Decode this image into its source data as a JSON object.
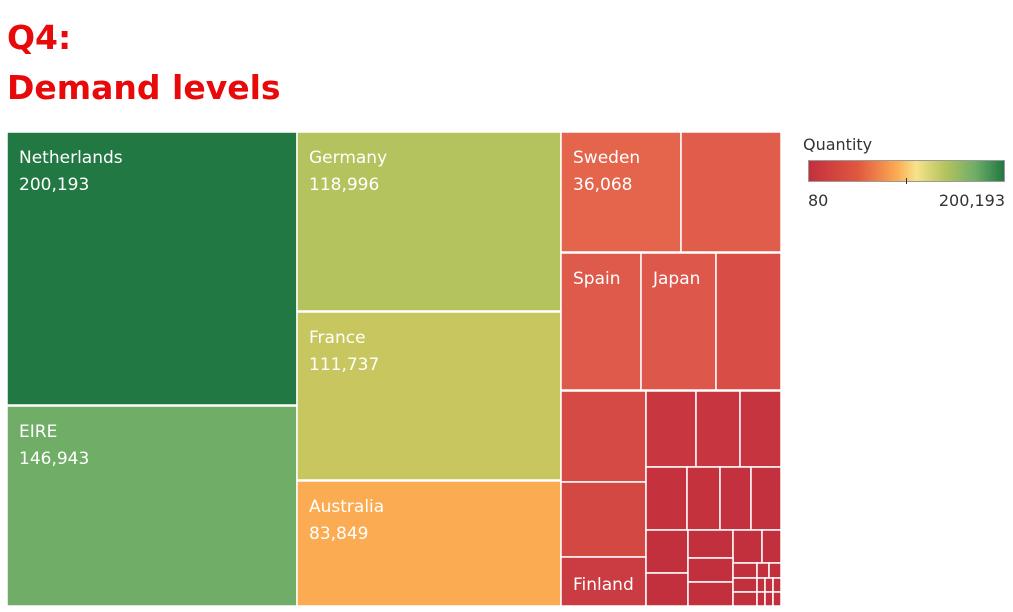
{
  "title": "Q4:",
  "subtitle": "Demand levels",
  "colors": {
    "title": "#e8090b",
    "scale_low": "#c3303d",
    "scale_mid": "#fbab52",
    "scale_high": "#227842"
  },
  "legend": {
    "title": "Quantity",
    "min_label": "80",
    "max_label": "200,193"
  },
  "chart_data": {
    "type": "treemap",
    "title": "Demand levels",
    "color_measure": "Quantity",
    "color_range": [
      80,
      200193
    ],
    "cells": [
      {
        "name": "Netherlands",
        "value": 200193,
        "value_label": "200,193",
        "color": "#227842"
      },
      {
        "name": "EIRE",
        "value": 146943,
        "value_label": "146,943",
        "color": "#70ae68"
      },
      {
        "name": "Germany",
        "value": 118996,
        "value_label": "118,996",
        "color": "#b4c35e"
      },
      {
        "name": "France",
        "value": 111737,
        "value_label": "111,737",
        "color": "#c8c75f"
      },
      {
        "name": "Australia",
        "value": 83849,
        "value_label": "83,849",
        "color": "#fbab52"
      },
      {
        "name": "Sweden",
        "value": 36068,
        "value_label": "36,068",
        "color": "#e5654c"
      },
      {
        "name": "",
        "color": "#e05d4b"
      },
      {
        "name": "Spain",
        "color": "#de5b4b"
      },
      {
        "name": "Japan",
        "color": "#de574b"
      },
      {
        "name": "",
        "color": "#d84d46"
      },
      {
        "name": "",
        "color": "#d54a45"
      },
      {
        "name": "",
        "color": "#c83640"
      },
      {
        "name": "",
        "color": "#c73540"
      },
      {
        "name": "",
        "color": "#c6343f"
      },
      {
        "name": "",
        "color": "#d44843"
      },
      {
        "name": "",
        "color": "#c5323e"
      },
      {
        "name": "",
        "color": "#c4323e"
      },
      {
        "name": "",
        "color": "#c4313e"
      },
      {
        "name": "",
        "color": "#c4313e"
      },
      {
        "name": "Finland",
        "color": "#cb3b42"
      },
      {
        "name": "",
        "color": "#c3303d"
      },
      {
        "name": "",
        "color": "#c3303d"
      },
      {
        "name": "",
        "color": "#c3303d"
      },
      {
        "name": "",
        "color": "#c3303d"
      },
      {
        "name": "",
        "color": "#c3303d"
      },
      {
        "name": "",
        "color": "#c3303d"
      },
      {
        "name": "",
        "color": "#c3303d"
      },
      {
        "name": "",
        "color": "#c3303d"
      },
      {
        "name": "",
        "color": "#c3303d"
      },
      {
        "name": "",
        "color": "#c3303d"
      },
      {
        "name": "",
        "color": "#c3303d"
      },
      {
        "name": "",
        "color": "#c3303d"
      },
      {
        "name": "",
        "color": "#c3303d"
      },
      {
        "name": "",
        "color": "#c3303d"
      },
      {
        "name": "",
        "color": "#c3303d"
      },
      {
        "name": "",
        "color": "#c3303d"
      },
      {
        "name": "",
        "color": "#c3303d"
      },
      {
        "name": "",
        "color": "#c3303d"
      }
    ]
  }
}
